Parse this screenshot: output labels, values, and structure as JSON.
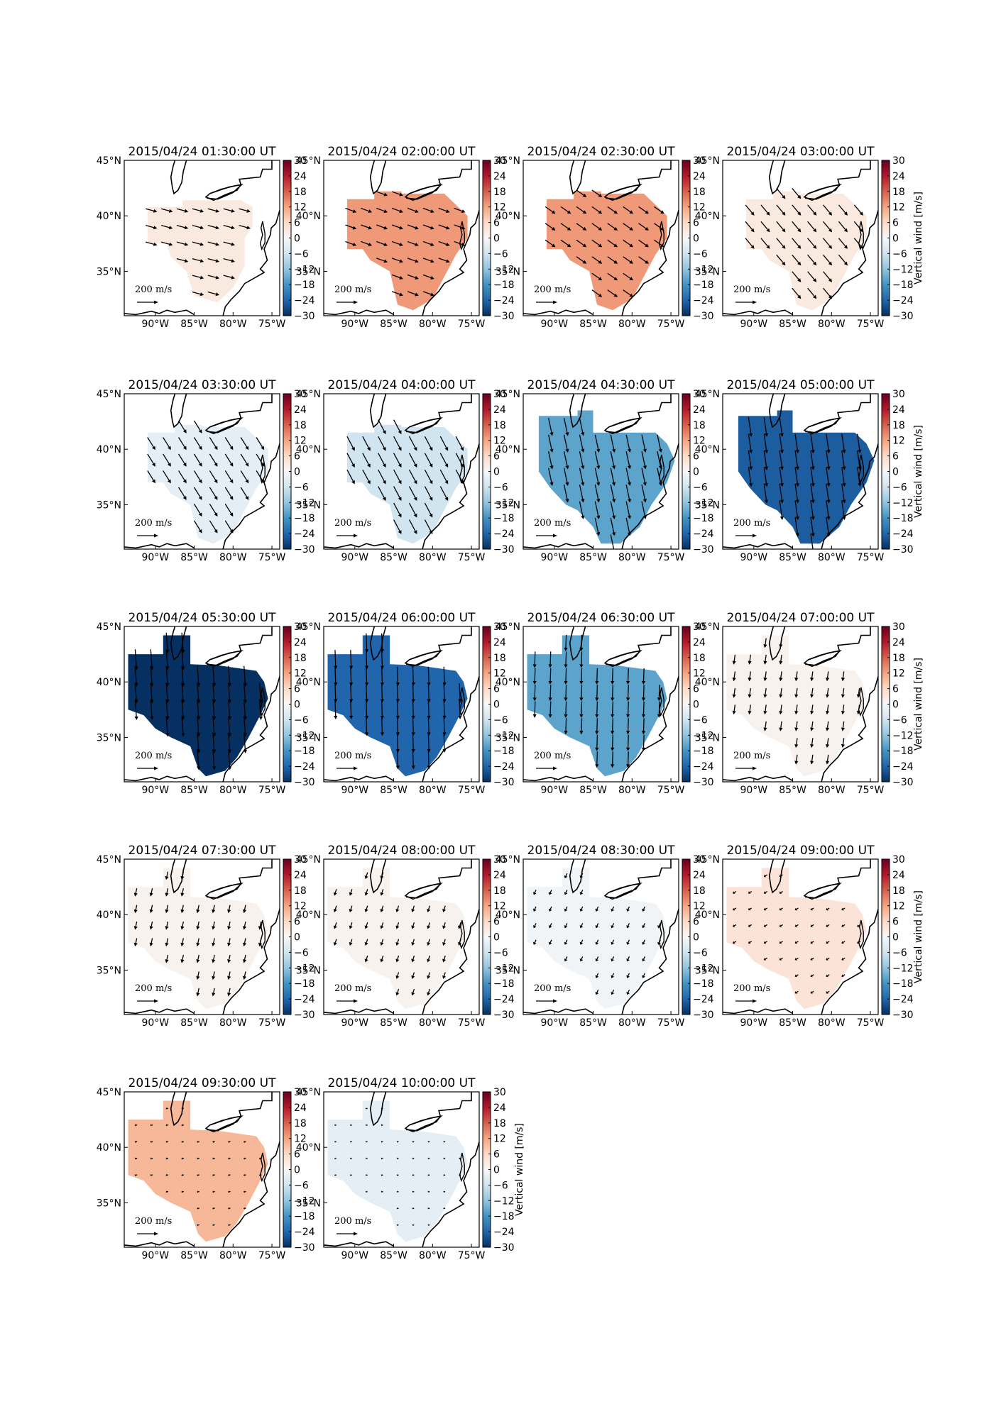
{
  "figure": {
    "colorbar_label": "Vertical wind [m/s]",
    "colormap": {
      "name": "RdBu_r",
      "stops": [
        "#053061",
        "#2166ac",
        "#4393c3",
        "#92c5de",
        "#d1e5f0",
        "#f7f7f7",
        "#fddbc7",
        "#f4a582",
        "#d6604d",
        "#b2182b",
        "#67001f"
      ]
    },
    "vector_scale_label": "200 m/s",
    "panel_titles": [
      "2015/04/24 01:30:00 UT",
      "2015/04/24 02:00:00 UT",
      "2015/04/24 02:30:00 UT",
      "2015/04/24 03:00:00 UT",
      "2015/04/24 03:30:00 UT",
      "2015/04/24 04:00:00 UT",
      "2015/04/24 04:30:00 UT",
      "2015/04/24 05:00:00 UT",
      "2015/04/24 05:30:00 UT",
      "2015/04/24 06:00:00 UT",
      "2015/04/24 06:30:00 UT",
      "2015/04/24 07:00:00 UT",
      "2015/04/24 07:30:00 UT",
      "2015/04/24 08:00:00 UT",
      "2015/04/24 08:30:00 UT",
      "2015/04/24 09:00:00 UT",
      "2015/04/24 09:30:00 UT",
      "2015/04/24 10:00:00 UT"
    ]
  },
  "chart_data": {
    "type": "heatmap",
    "description_of_axes": {
      "xlabel": "",
      "ylabel": "",
      "lon_range": [
        -94,
        -74
      ],
      "lat_range": [
        31,
        45
      ],
      "lon_ticks": [
        -90,
        -85,
        -80,
        -75
      ],
      "lon_tick_labels": [
        "90°W",
        "85°W",
        "80°W",
        "75°W"
      ],
      "lat_ticks": [
        35,
        40,
        45
      ],
      "lat_tick_labels": [
        "35°N",
        "40°N",
        "45°N"
      ]
    },
    "colorbar": {
      "label": "Vertical wind [m/s]",
      "range": [
        -30,
        30
      ],
      "ticks": [
        -30,
        -24,
        -18,
        -12,
        -6,
        0,
        6,
        12,
        18,
        24,
        30
      ]
    },
    "vector_reference": {
      "magnitude": 200,
      "unit": "m/s"
    },
    "panels": [
      {
        "time": "2015/04/24 01:30:00 UT",
        "vertical_wind": 3,
        "horizontal_wind_direction_deg": 105,
        "horizontal_wind_speed": 120,
        "coverage": "small"
      },
      {
        "time": "2015/04/24 02:00:00 UT",
        "vertical_wind": 13,
        "horizontal_wind_direction_deg": 110,
        "horizontal_wind_speed": 120,
        "coverage": "medium"
      },
      {
        "time": "2015/04/24 02:30:00 UT",
        "vertical_wind": 13,
        "horizontal_wind_direction_deg": 125,
        "horizontal_wind_speed": 125,
        "coverage": "medium"
      },
      {
        "time": "2015/04/24 03:00:00 UT",
        "vertical_wind": 3,
        "horizontal_wind_direction_deg": 140,
        "horizontal_wind_speed": 140,
        "coverage": "medium"
      },
      {
        "time": "2015/04/24 03:30:00 UT",
        "vertical_wind": -3,
        "horizontal_wind_direction_deg": 148,
        "horizontal_wind_speed": 150,
        "coverage": "medium"
      },
      {
        "time": "2015/04/24 04:00:00 UT",
        "vertical_wind": -6,
        "horizontal_wind_direction_deg": 152,
        "horizontal_wind_speed": 165,
        "coverage": "medium"
      },
      {
        "time": "2015/04/24 04:30:00 UT",
        "vertical_wind": -16,
        "horizontal_wind_direction_deg": 168,
        "horizontal_wind_speed": 185,
        "coverage": "large"
      },
      {
        "time": "2015/04/24 05:00:00 UT",
        "vertical_wind": -25,
        "horizontal_wind_direction_deg": 172,
        "horizontal_wind_speed": 200,
        "coverage": "large"
      },
      {
        "time": "2015/04/24 05:30:00 UT",
        "vertical_wind": -30,
        "horizontal_wind_direction_deg": 176,
        "horizontal_wind_speed": 210,
        "coverage": "full"
      },
      {
        "time": "2015/04/24 06:00:00 UT",
        "vertical_wind": -24,
        "horizontal_wind_direction_deg": 178,
        "horizontal_wind_speed": 195,
        "coverage": "full"
      },
      {
        "time": "2015/04/24 06:30:00 UT",
        "vertical_wind": -16,
        "horizontal_wind_direction_deg": 182,
        "horizontal_wind_speed": 165,
        "coverage": "full"
      },
      {
        "time": "2015/04/24 07:00:00 UT",
        "vertical_wind": 1,
        "horizontal_wind_direction_deg": 188,
        "horizontal_wind_speed": 100,
        "coverage": "full"
      },
      {
        "time": "2015/04/24 07:30:00 UT",
        "vertical_wind": 1,
        "horizontal_wind_direction_deg": 192,
        "horizontal_wind_speed": 85,
        "coverage": "full"
      },
      {
        "time": "2015/04/24 08:00:00 UT",
        "vertical_wind": 1,
        "horizontal_wind_direction_deg": 198,
        "horizontal_wind_speed": 70,
        "coverage": "full"
      },
      {
        "time": "2015/04/24 08:30:00 UT",
        "vertical_wind": -1,
        "horizontal_wind_direction_deg": 205,
        "horizontal_wind_speed": 55,
        "coverage": "full"
      },
      {
        "time": "2015/04/24 09:00:00 UT",
        "vertical_wind": 4,
        "horizontal_wind_direction_deg": 240,
        "horizontal_wind_speed": 40,
        "coverage": "full"
      },
      {
        "time": "2015/04/24 09:30:00 UT",
        "vertical_wind": 10,
        "horizontal_wind_direction_deg": 260,
        "horizontal_wind_speed": 25,
        "coverage": "full"
      },
      {
        "time": "2015/04/24 10:00:00 UT",
        "vertical_wind": -3,
        "horizontal_wind_direction_deg": 270,
        "horizontal_wind_speed": 20,
        "coverage": "full"
      }
    ]
  }
}
